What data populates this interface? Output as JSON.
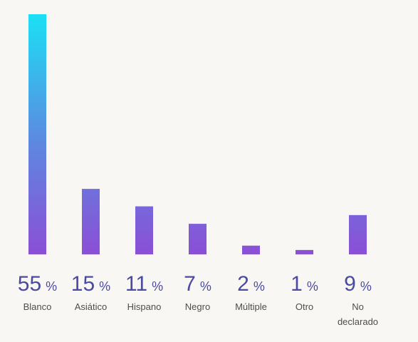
{
  "chart_data": {
    "type": "bar",
    "title": "",
    "xlabel": "",
    "ylabel": "",
    "ylim": [
      0,
      55
    ],
    "grid": false,
    "legend": "none",
    "categories": [
      "Blanco",
      "Asiático",
      "Hispano",
      "Negro",
      "Múltiple",
      "Otro",
      "No declarado"
    ],
    "category_lines": [
      [
        "Blanco"
      ],
      [
        "Asiático"
      ],
      [
        "Hispano"
      ],
      [
        "Negro"
      ],
      [
        "Múltiple"
      ],
      [
        "Otro"
      ],
      [
        "No",
        "declarado"
      ]
    ],
    "values": [
      55,
      15,
      11,
      7,
      2,
      1,
      9
    ],
    "value_unit": "%"
  },
  "colors": {
    "background": "#f9f7f3",
    "bar_top_tallest": "#1be0f4",
    "bar_mid": "#5f86e0",
    "bar_bottom": "#8b4fd6",
    "value_text": "#4a4aa0",
    "label_text": "#4d4d4d"
  }
}
